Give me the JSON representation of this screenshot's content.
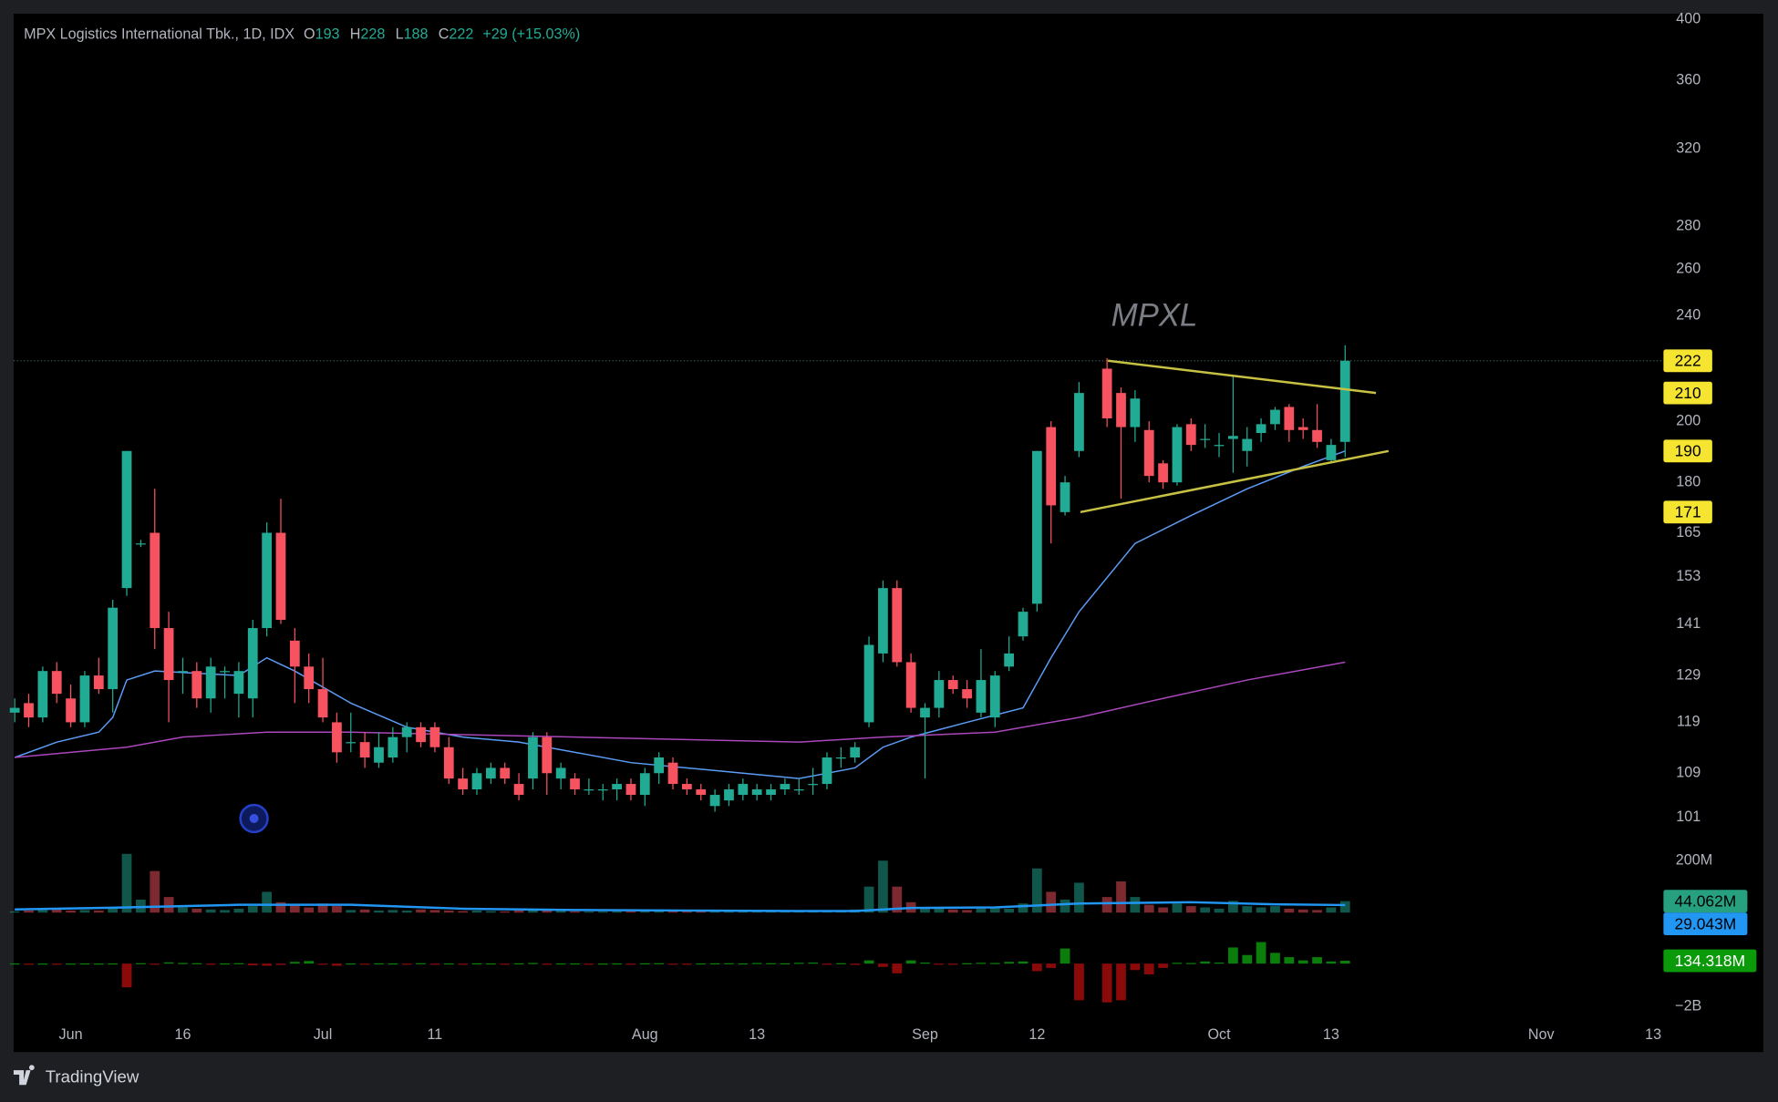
{
  "chart_data": {
    "type": "candlestick",
    "title": "MPX Logistics International Tbk., 1D, IDX",
    "ohlc_legend": [
      {
        "key": "O",
        "value": 193
      },
      {
        "key": "H",
        "value": 228
      },
      {
        "key": "L",
        "value": 188
      },
      {
        "key": "C",
        "value": 222
      }
    ],
    "change": "+29 (+15.03%)",
    "watermark": "MPXL",
    "colors": {
      "up": "#22ab94",
      "down": "#f7525f"
    },
    "x": [
      0,
      1,
      2,
      3,
      4,
      5,
      6,
      7,
      8,
      9,
      10,
      11,
      12,
      13,
      14,
      15,
      16,
      17,
      18,
      19,
      20,
      21,
      22,
      23,
      24,
      25,
      26,
      27,
      28,
      29,
      30,
      31,
      32,
      33,
      34,
      35,
      36,
      37,
      38,
      39,
      40,
      41,
      42,
      43,
      44,
      45,
      46,
      47,
      48,
      49,
      50,
      51,
      52,
      53,
      54,
      55,
      56,
      57,
      58,
      59,
      60,
      61,
      62,
      63,
      64,
      65,
      66,
      67,
      68,
      69,
      70,
      71,
      72,
      73,
      74,
      75,
      76,
      78,
      79,
      80,
      81,
      82,
      83,
      84,
      85,
      86,
      87,
      88,
      89,
      90,
      91,
      92,
      93,
      94,
      95
    ],
    "ohlc": [
      [
        121,
        124,
        119,
        122
      ],
      [
        123,
        125,
        118,
        120
      ],
      [
        120,
        131,
        119,
        130
      ],
      [
        130,
        132,
        123,
        125
      ],
      [
        124,
        127,
        118,
        119
      ],
      [
        119,
        130,
        118,
        129
      ],
      [
        129,
        133,
        125,
        126
      ],
      [
        126,
        147,
        121,
        145
      ],
      [
        150,
        190,
        148,
        190
      ],
      [
        162,
        163,
        161,
        162
      ],
      [
        165,
        178,
        135,
        140
      ],
      [
        140,
        144,
        119,
        128
      ],
      [
        130,
        133,
        125,
        130
      ],
      [
        130,
        132,
        122,
        124
      ],
      [
        124,
        133,
        121,
        131
      ],
      [
        130,
        131,
        124,
        130
      ],
      [
        125,
        132,
        120,
        130
      ],
      [
        124,
        142,
        120,
        140
      ],
      [
        140,
        168,
        138,
        165
      ],
      [
        165,
        175,
        141,
        142
      ],
      [
        137,
        140,
        123,
        131
      ],
      [
        131,
        134,
        123,
        126
      ],
      [
        126,
        133,
        119,
        120
      ],
      [
        119,
        121,
        111,
        113
      ],
      [
        115,
        121,
        113,
        115
      ],
      [
        115,
        117,
        110,
        112
      ],
      [
        111,
        117,
        110,
        114
      ],
      [
        112,
        118,
        111,
        116
      ],
      [
        116,
        119,
        113,
        118
      ],
      [
        118,
        119,
        114,
        115
      ],
      [
        118,
        119,
        113,
        114
      ],
      [
        114,
        116,
        107,
        108
      ],
      [
        108,
        110,
        105,
        106
      ],
      [
        106,
        110,
        105,
        109
      ],
      [
        108,
        111,
        107,
        110
      ],
      [
        110,
        111,
        107,
        108
      ],
      [
        107,
        109,
        104,
        105
      ],
      [
        108,
        117,
        106,
        116
      ],
      [
        116,
        117,
        105,
        109
      ],
      [
        108,
        111,
        106,
        110
      ],
      [
        108,
        109,
        105,
        106
      ],
      [
        106,
        108,
        105,
        106
      ],
      [
        106,
        107,
        104,
        106
      ],
      [
        106,
        108,
        104,
        107
      ],
      [
        107,
        108,
        104,
        105
      ],
      [
        105,
        110,
        103,
        109
      ],
      [
        109,
        113,
        107,
        112
      ],
      [
        111,
        112,
        106,
        107
      ],
      [
        107,
        108,
        105,
        106
      ],
      [
        106,
        107,
        104,
        105
      ],
      [
        103,
        106,
        102,
        105
      ],
      [
        104,
        107,
        103,
        106
      ],
      [
        105,
        108,
        104,
        107
      ],
      [
        105,
        107,
        104,
        106
      ],
      [
        105,
        107,
        104,
        106
      ],
      [
        106,
        108,
        105,
        107
      ],
      [
        106,
        108,
        105,
        106
      ],
      [
        107,
        110,
        105,
        107
      ],
      [
        107,
        113,
        106,
        112
      ],
      [
        112,
        114,
        110,
        112
      ],
      [
        112,
        115,
        111,
        114
      ],
      [
        119,
        138,
        118,
        136
      ],
      [
        134,
        152,
        132,
        150
      ],
      [
        150,
        152,
        131,
        132
      ],
      [
        132,
        134,
        121,
        122
      ],
      [
        120,
        123,
        108,
        122
      ],
      [
        122,
        130,
        120,
        128
      ],
      [
        128,
        129,
        125,
        126
      ],
      [
        126,
        128,
        122,
        124
      ],
      [
        121,
        135,
        120,
        128
      ],
      [
        120,
        130,
        118,
        129
      ],
      [
        131,
        138,
        130,
        134
      ],
      [
        138,
        145,
        137,
        144
      ],
      [
        146,
        190,
        144,
        190
      ],
      [
        198,
        200,
        162,
        173
      ],
      [
        171,
        182,
        170,
        180
      ],
      [
        190,
        214,
        188,
        210
      ],
      [
        219,
        223,
        198,
        201
      ],
      [
        210,
        212,
        175,
        198
      ],
      [
        198,
        211,
        193,
        208
      ],
      [
        197,
        200,
        180,
        182
      ],
      [
        186,
        187,
        178,
        180
      ],
      [
        180,
        199,
        179,
        198
      ],
      [
        199,
        201,
        190,
        192
      ],
      [
        194,
        199,
        191,
        194
      ],
      [
        192,
        196,
        188,
        192
      ],
      [
        194,
        216,
        183,
        195
      ],
      [
        190,
        198,
        185,
        194
      ],
      [
        196,
        201,
        193,
        199
      ],
      [
        199,
        205,
        197,
        204
      ],
      [
        205,
        206,
        193,
        197
      ],
      [
        198,
        201,
        194,
        197
      ],
      [
        197,
        206,
        191,
        193
      ],
      [
        187,
        194,
        186,
        192
      ],
      [
        193,
        228,
        188,
        222
      ]
    ],
    "xlim": [
      -0.08,
      117.57
    ],
    "xticks": [
      {
        "value": 4,
        "label": "Jun"
      },
      {
        "value": 12,
        "label": "16"
      },
      {
        "value": 22,
        "label": "Jul"
      },
      {
        "value": 30,
        "label": "11"
      },
      {
        "value": 45,
        "label": "Aug"
      },
      {
        "value": 53,
        "label": "13"
      },
      {
        "value": 65,
        "label": "Sep"
      },
      {
        "value": 73,
        "label": "12"
      },
      {
        "value": 86,
        "label": "Oct"
      },
      {
        "value": 94,
        "label": "13"
      },
      {
        "value": 109,
        "label": "Nov"
      },
      {
        "value": 117,
        "label": "13"
      }
    ],
    "ylim": [
      101,
      400
    ],
    "log_y": true,
    "yticks": [
      400,
      360,
      320,
      280,
      260,
      240,
      200,
      180,
      165,
      153,
      141,
      129,
      119,
      109,
      101
    ],
    "moving_averages": [
      {
        "color": "#5b9cf6",
        "x": [
          0,
          3,
          6,
          7,
          8,
          10,
          16,
          18,
          20,
          24,
          28,
          32,
          36,
          40,
          44,
          48,
          52,
          56,
          60,
          62,
          64,
          68,
          72,
          74,
          76,
          80,
          84,
          88,
          92,
          95
        ],
        "values": [
          112,
          115,
          117,
          120,
          128,
          130,
          129,
          133,
          130,
          123,
          118,
          116,
          115,
          113,
          111,
          110,
          109,
          108,
          110,
          114,
          116,
          119,
          122,
          133,
          144,
          162,
          170,
          178,
          185,
          190
        ]
      },
      {
        "color": "#ab47bc",
        "x": [
          0,
          8,
          12,
          18,
          24,
          40,
          56,
          62,
          70,
          76,
          82,
          88,
          95
        ],
        "values": [
          112,
          114,
          116,
          117,
          117,
          116,
          115,
          116,
          117,
          120,
          124,
          128,
          132
        ]
      }
    ],
    "trendlines": [
      {
        "color": "#c6c043",
        "x": [
          78.06,
          97.2
        ],
        "values": [
          222,
          210
        ]
      },
      {
        "color": "#c6c043",
        "x": [
          76.1,
          98.1
        ],
        "values": [
          171,
          190
        ]
      }
    ],
    "volume": {
      "values": [
        5,
        8,
        10,
        12,
        8,
        10,
        8,
        20,
        226,
        50,
        160,
        60,
        20,
        15,
        12,
        10,
        15,
        25,
        80,
        40,
        30,
        20,
        35,
        25,
        10,
        12,
        8,
        10,
        8,
        12,
        10,
        8,
        6,
        8,
        6,
        5,
        8,
        15,
        10,
        6,
        5,
        4,
        4,
        5,
        5,
        8,
        8,
        6,
        5,
        5,
        5,
        4,
        4,
        4,
        4,
        4,
        4,
        5,
        8,
        6,
        12,
        100,
        200,
        100,
        40,
        15,
        20,
        12,
        10,
        15,
        20,
        15,
        35,
        170,
        80,
        50,
        115,
        60,
        120,
        60,
        30,
        20,
        35,
        25,
        20,
        15,
        45,
        25,
        20,
        25,
        15,
        12,
        10,
        20,
        44.062
      ],
      "ylim": [
        0,
        240
      ],
      "yticks": [
        {
          "value": 200,
          "label": "200M"
        }
      ],
      "ma": {
        "color": "#2196f3",
        "x": [
          0,
          8,
          16,
          24,
          32,
          40,
          48,
          56,
          60,
          64,
          70,
          76,
          84,
          90,
          95
        ],
        "values": [
          12,
          20,
          30,
          30,
          15,
          10,
          8,
          6,
          6,
          18,
          20,
          35,
          40,
          32,
          29.043
        ]
      },
      "last_label": {
        "value": 44.062,
        "label": "44.062M"
      },
      "ma_label": {
        "value": 29.043,
        "label": "29.043M"
      }
    },
    "indicator": {
      "values": [
        10,
        -20,
        5,
        -30,
        5,
        10,
        5,
        10,
        -1100,
        20,
        -50,
        60,
        30,
        20,
        -20,
        10,
        20,
        -80,
        -100,
        -60,
        80,
        120,
        -40,
        -100,
        10,
        -20,
        15,
        10,
        -10,
        20,
        -15,
        10,
        -10,
        15,
        10,
        -20,
        15,
        30,
        -20,
        10,
        10,
        -5,
        5,
        10,
        -10,
        15,
        20,
        -10,
        -15,
        10,
        15,
        20,
        10,
        30,
        20,
        15,
        40,
        50,
        -30,
        20,
        -60,
        150,
        -150,
        -450,
        150,
        50,
        -50,
        -30,
        20,
        40,
        30,
        80,
        100,
        -350,
        -200,
        700,
        -1700,
        -1800,
        -1700,
        -300,
        -500,
        -200,
        40,
        30,
        100,
        50,
        750,
        400,
        1000,
        500,
        300,
        150,
        300,
        100,
        134.318
      ],
      "ylim": [
        -2000,
        1842
      ],
      "yticks": [
        {
          "value": -2000,
          "label": "−2B"
        }
      ],
      "colors": {
        "up": "#0a7d0a",
        "down": "#8a0a0a"
      },
      "last_label": {
        "value": 134.318,
        "label": "134.318M"
      }
    },
    "footer": "TradingView"
  }
}
